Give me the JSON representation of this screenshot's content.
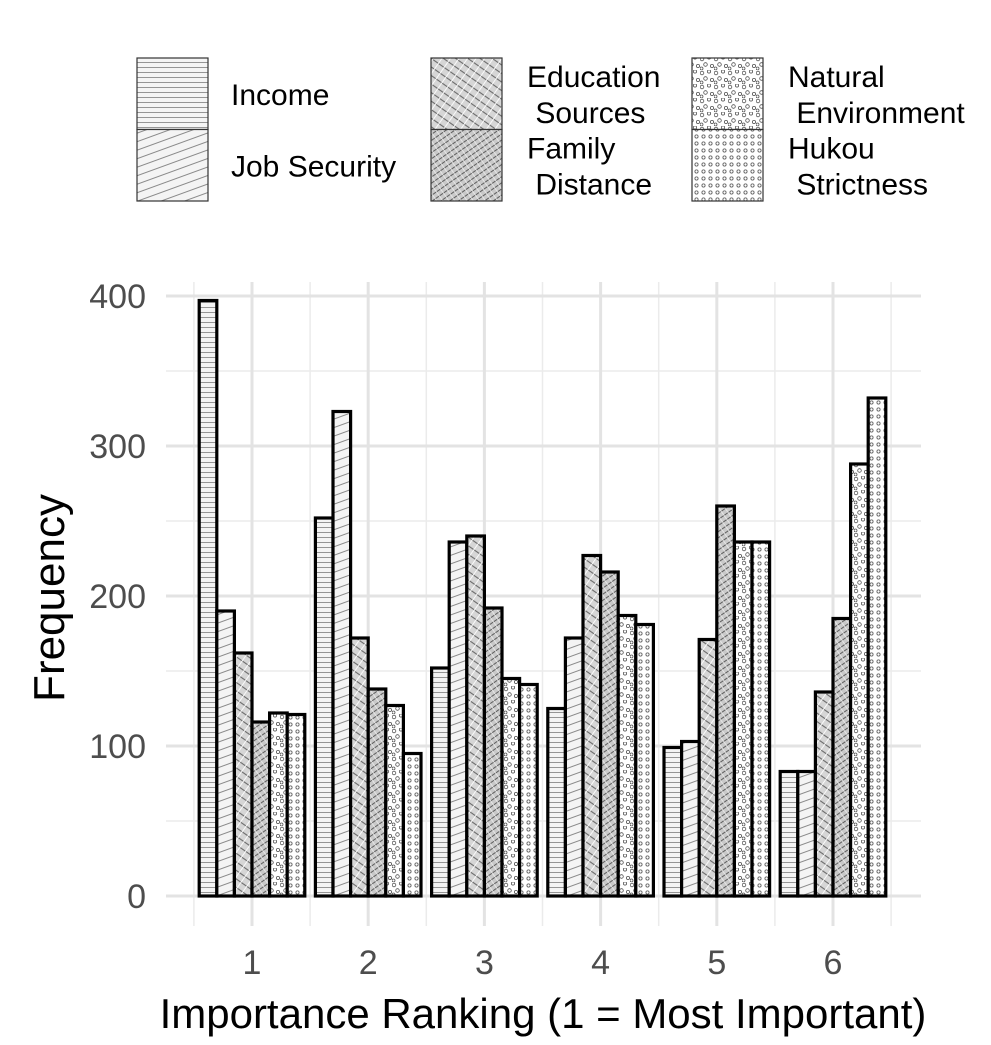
{
  "chart_data": {
    "type": "bar",
    "title": "",
    "xlabel": "Importance Ranking (1 = Most Important)",
    "ylabel": "Frequency",
    "categories": [
      "1",
      "2",
      "3",
      "4",
      "5",
      "6"
    ],
    "ylim": [
      0,
      400
    ],
    "yticks": [
      0,
      100,
      200,
      300,
      400
    ],
    "grid": true,
    "legend_position": "top",
    "series": [
      {
        "name": "Income",
        "legend_lines": [
          "Income"
        ],
        "pattern": "horizontal-lines",
        "values": [
          397,
          252,
          152,
          125,
          99,
          83
        ]
      },
      {
        "name": "Job Security",
        "legend_lines": [
          "Job Security"
        ],
        "pattern": "diagonal-lines",
        "values": [
          190,
          323,
          236,
          172,
          103,
          83
        ]
      },
      {
        "name": "Education Sources",
        "legend_lines": [
          "Education",
          " Sources"
        ],
        "pattern": "crosshatch",
        "values": [
          162,
          172,
          240,
          227,
          171,
          136
        ]
      },
      {
        "name": "Family Distance",
        "legend_lines": [
          "Family",
          " Distance"
        ],
        "pattern": "crosshatch-dense",
        "values": [
          116,
          138,
          192,
          216,
          260,
          185
        ]
      },
      {
        "name": "Natural Environment",
        "legend_lines": [
          "Natural",
          " Environment"
        ],
        "pattern": "dots-random",
        "values": [
          122,
          127,
          145,
          187,
          236,
          288
        ]
      },
      {
        "name": "Hukou Strictness",
        "legend_lines": [
          "Hukou",
          " Strictness"
        ],
        "pattern": "dots-grid",
        "values": [
          121,
          95,
          141,
          181,
          236,
          332
        ]
      }
    ]
  }
}
